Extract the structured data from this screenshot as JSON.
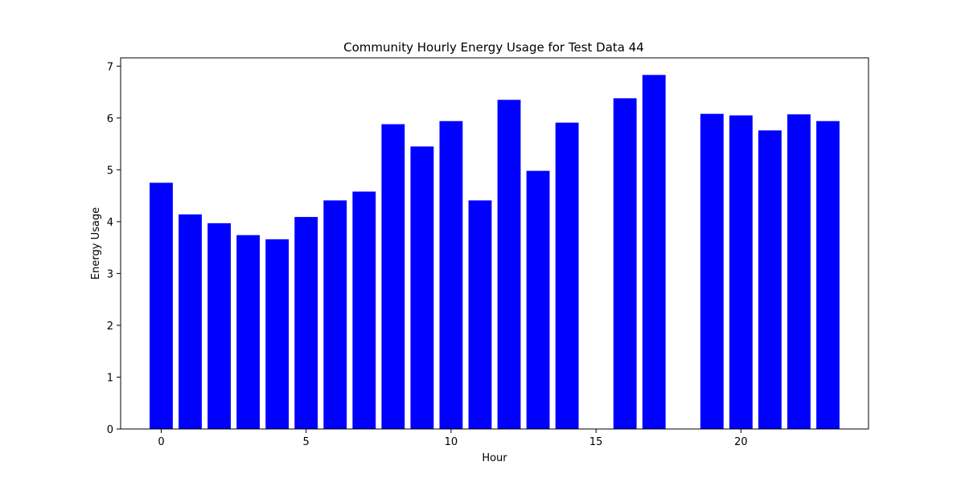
{
  "chart_data": {
    "type": "bar",
    "title": "Community Hourly Energy Usage for Test Data 44",
    "xlabel": "Hour",
    "ylabel": "Energy Usage",
    "x": [
      0,
      1,
      2,
      3,
      4,
      5,
      6,
      7,
      8,
      9,
      10,
      11,
      12,
      13,
      14,
      16,
      17,
      19,
      20,
      21,
      22,
      23
    ],
    "values": [
      4.75,
      4.14,
      3.97,
      3.74,
      3.66,
      4.09,
      4.41,
      4.58,
      5.88,
      5.45,
      5.94,
      4.41,
      6.35,
      4.98,
      5.91,
      6.38,
      6.83,
      6.08,
      6.05,
      5.76,
      6.07,
      5.94
    ],
    "xlim": [
      -1.4,
      24.4
    ],
    "ylim": [
      0,
      7.16
    ],
    "xticks": [
      0,
      5,
      10,
      15,
      20
    ],
    "yticks": [
      0,
      1,
      2,
      3,
      4,
      5,
      6,
      7
    ],
    "bar_color": "#0000ff",
    "grid": false
  }
}
